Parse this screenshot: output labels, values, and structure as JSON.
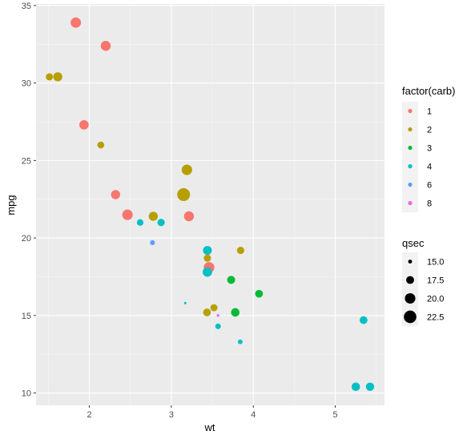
{
  "chart_data": {
    "type": "scatter",
    "xlabel": "wt",
    "ylabel": "mpg",
    "xlim": [
      1.35,
      5.6
    ],
    "ylim": [
      9.2,
      35.1
    ],
    "x_ticks": [
      2,
      3,
      4,
      5
    ],
    "y_ticks": [
      10,
      15,
      20,
      25,
      30,
      35
    ],
    "grid": true,
    "legend_position": "right",
    "color_legend": {
      "title": "factor(carb)",
      "entries": [
        {
          "label": "1",
          "color": "#F8766D"
        },
        {
          "label": "2",
          "color": "#B79F00"
        },
        {
          "label": "3",
          "color": "#00BA38"
        },
        {
          "label": "4",
          "color": "#00BFC4"
        },
        {
          "label": "6",
          "color": "#619CFF"
        },
        {
          "label": "8",
          "color": "#F564E3"
        }
      ]
    },
    "size_legend": {
      "title": "qsec",
      "entries": [
        {
          "label": "15.0",
          "value": 15.0
        },
        {
          "label": "17.5",
          "value": 17.5
        },
        {
          "label": "20.0",
          "value": 20.0
        },
        {
          "label": "22.5",
          "value": 22.5
        }
      ]
    },
    "points": [
      {
        "wt": 2.62,
        "mpg": 21.0,
        "carb": "4",
        "qsec": 16.46
      },
      {
        "wt": 2.875,
        "mpg": 21.0,
        "carb": "4",
        "qsec": 17.02
      },
      {
        "wt": 2.32,
        "mpg": 22.8,
        "carb": "1",
        "qsec": 18.61
      },
      {
        "wt": 3.215,
        "mpg": 21.4,
        "carb": "1",
        "qsec": 19.44
      },
      {
        "wt": 3.44,
        "mpg": 18.7,
        "carb": "2",
        "qsec": 17.02
      },
      {
        "wt": 3.46,
        "mpg": 18.1,
        "carb": "1",
        "qsec": 20.22
      },
      {
        "wt": 3.57,
        "mpg": 14.3,
        "carb": "4",
        "qsec": 15.84
      },
      {
        "wt": 3.19,
        "mpg": 24.4,
        "carb": "2",
        "qsec": 20.0
      },
      {
        "wt": 3.15,
        "mpg": 22.8,
        "carb": "2",
        "qsec": 22.9
      },
      {
        "wt": 3.44,
        "mpg": 19.2,
        "carb": "4",
        "qsec": 18.3
      },
      {
        "wt": 3.44,
        "mpg": 17.8,
        "carb": "4",
        "qsec": 18.9
      },
      {
        "wt": 4.07,
        "mpg": 16.4,
        "carb": "3",
        "qsec": 17.4
      },
      {
        "wt": 3.73,
        "mpg": 17.3,
        "carb": "3",
        "qsec": 17.6
      },
      {
        "wt": 3.78,
        "mpg": 15.2,
        "carb": "3",
        "qsec": 18.0
      },
      {
        "wt": 5.25,
        "mpg": 10.4,
        "carb": "4",
        "qsec": 17.98
      },
      {
        "wt": 5.424,
        "mpg": 10.4,
        "carb": "4",
        "qsec": 17.82
      },
      {
        "wt": 5.345,
        "mpg": 14.7,
        "carb": "4",
        "qsec": 17.42
      },
      {
        "wt": 2.2,
        "mpg": 32.4,
        "carb": "1",
        "qsec": 19.47
      },
      {
        "wt": 1.615,
        "mpg": 30.4,
        "carb": "2",
        "qsec": 18.52
      },
      {
        "wt": 1.835,
        "mpg": 33.9,
        "carb": "1",
        "qsec": 19.9
      },
      {
        "wt": 2.465,
        "mpg": 21.5,
        "carb": "1",
        "qsec": 20.01
      },
      {
        "wt": 3.52,
        "mpg": 15.5,
        "carb": "2",
        "qsec": 16.87
      },
      {
        "wt": 3.435,
        "mpg": 15.2,
        "carb": "2",
        "qsec": 17.3
      },
      {
        "wt": 3.84,
        "mpg": 13.3,
        "carb": "4",
        "qsec": 15.41
      },
      {
        "wt": 3.845,
        "mpg": 19.2,
        "carb": "2",
        "qsec": 17.05
      },
      {
        "wt": 1.935,
        "mpg": 27.3,
        "carb": "1",
        "qsec": 18.9
      },
      {
        "wt": 2.14,
        "mpg": 26.0,
        "carb": "2",
        "qsec": 16.7
      },
      {
        "wt": 1.513,
        "mpg": 30.4,
        "carb": "2",
        "qsec": 16.9
      },
      {
        "wt": 3.17,
        "mpg": 15.8,
        "carb": "4",
        "qsec": 14.5
      },
      {
        "wt": 2.77,
        "mpg": 19.7,
        "carb": "6",
        "qsec": 15.5
      },
      {
        "wt": 3.57,
        "mpg": 15.0,
        "carb": "8",
        "qsec": 14.6
      },
      {
        "wt": 2.78,
        "mpg": 21.4,
        "carb": "2",
        "qsec": 18.6
      }
    ]
  }
}
